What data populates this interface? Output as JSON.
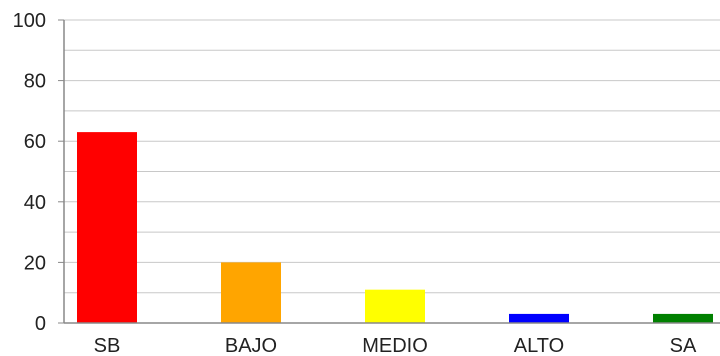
{
  "chart_data": {
    "type": "bar",
    "categories": [
      "SB",
      "BAJO",
      "MEDIO",
      "ALTO",
      "SA"
    ],
    "values": [
      63,
      20,
      11,
      3,
      3
    ],
    "colors": [
      "#ff0000",
      "#ffa500",
      "#ffff00",
      "#0000ff",
      "#008000"
    ],
    "ylim": [
      0,
      100
    ],
    "yticks": [
      0,
      20,
      40,
      60,
      80,
      100
    ],
    "minor_gridlines_every": 10,
    "grid": true,
    "title": "",
    "xlabel": "",
    "ylabel": ""
  }
}
